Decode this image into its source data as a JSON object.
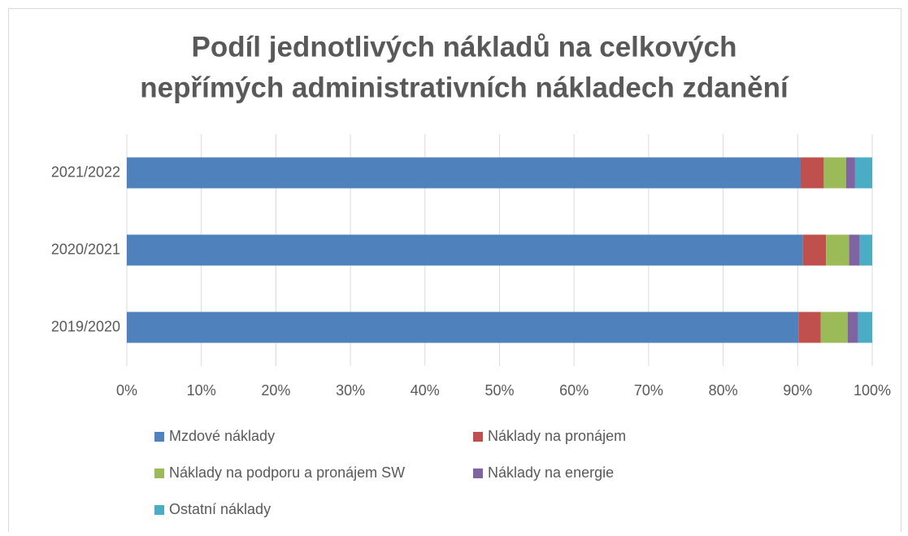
{
  "chart_data": {
    "type": "stacked-barh",
    "title": [
      "Podíl jednotlivých nákladů na celkových",
      "nepřímých administrativních nákladech zdanění"
    ],
    "categories": [
      "2019/2020",
      "2020/2021",
      "2021/2022"
    ],
    "series": [
      {
        "name": "Mzdové náklady",
        "color": "#4f81bd",
        "values": [
          90.1,
          90.7,
          90.4
        ]
      },
      {
        "name": "Náklady na pronájem",
        "color": "#c0504d",
        "values": [
          3.0,
          3.1,
          3.1
        ]
      },
      {
        "name": "Náklady na podporu a pronájem SW",
        "color": "#9bbb59",
        "values": [
          3.6,
          3.1,
          3.0
        ]
      },
      {
        "name": "Náklady na energie",
        "color": "#8064a2",
        "values": [
          1.4,
          1.4,
          1.2
        ]
      },
      {
        "name": "Ostatní náklady",
        "color": "#4bacc6",
        "values": [
          1.9,
          1.7,
          2.3
        ]
      }
    ],
    "xlim": [
      0,
      100
    ],
    "xticks": [
      {
        "value": 0,
        "label": "0%"
      },
      {
        "value": 10,
        "label": "10%"
      },
      {
        "value": 20,
        "label": "20%"
      },
      {
        "value": 30,
        "label": "30%"
      },
      {
        "value": 40,
        "label": "40%"
      },
      {
        "value": 50,
        "label": "50%"
      },
      {
        "value": 60,
        "label": "60%"
      },
      {
        "value": 70,
        "label": "70%"
      },
      {
        "value": 80,
        "label": "80%"
      },
      {
        "value": 90,
        "label": "90%"
      },
      {
        "value": 100,
        "label": "100%"
      }
    ],
    "grid": true,
    "legend": "bottom"
  }
}
